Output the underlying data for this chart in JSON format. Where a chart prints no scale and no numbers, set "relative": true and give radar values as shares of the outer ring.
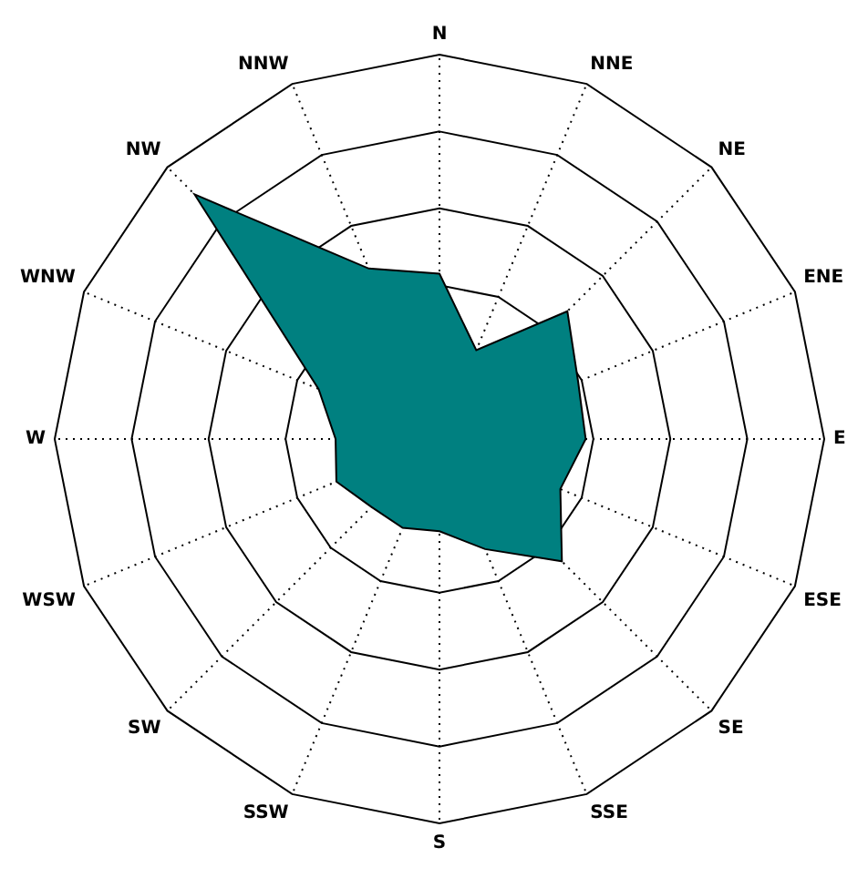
{
  "chart_data": {
    "type": "radar",
    "relative": true,
    "categories": [
      "N",
      "NNE",
      "NE",
      "ENE",
      "E",
      "ESE",
      "SE",
      "SSE",
      "S",
      "SSW",
      "SW",
      "WSW",
      "W",
      "WNW",
      "NW",
      "NNW"
    ],
    "series": [
      {
        "color": "#008080",
        "values": [
          0.43,
          0.25,
          0.47,
          0.39,
          0.38,
          0.34,
          0.45,
          0.31,
          0.24,
          0.25,
          0.25,
          0.29,
          0.27,
          0.34,
          0.9,
          0.48
        ]
      }
    ],
    "grid": true,
    "legend": false,
    "marker": "none"
  }
}
